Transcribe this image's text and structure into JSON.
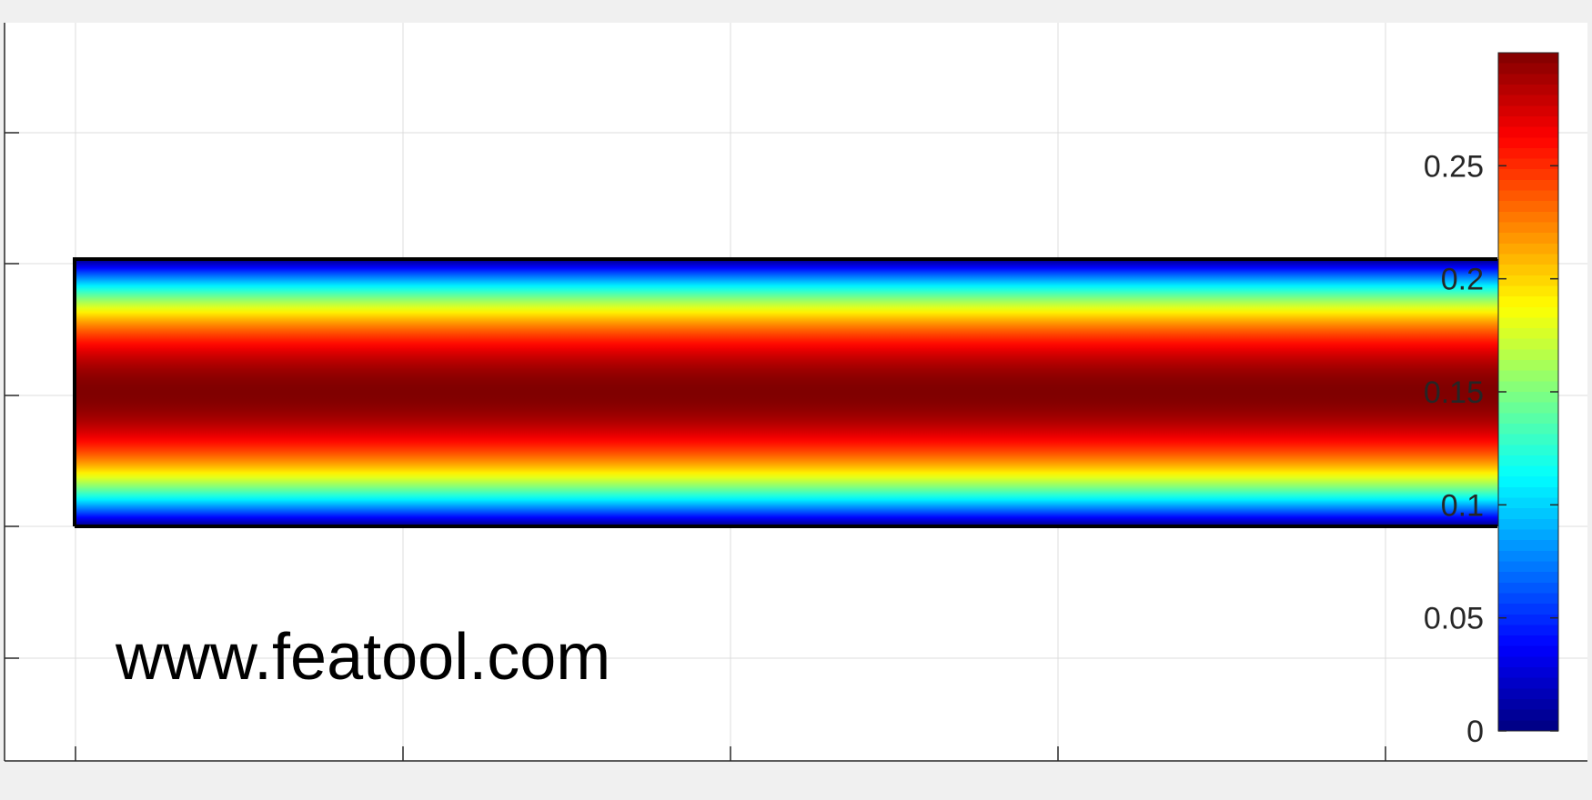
{
  "chart_data": {
    "type": "heatmap",
    "title": "",
    "xlabel": "",
    "ylabel": "",
    "grid": true,
    "colormap": "jet",
    "field_profile": "parabolic across channel height (zero at walls, maximum at centerline)",
    "domain": {
      "description": "rectangular channel region spanning the full plot width",
      "value_at_walls": 0,
      "value_at_center": 0.3
    },
    "colorbar": {
      "location": "right",
      "range": [
        0,
        0.3
      ],
      "ticks": [
        0,
        0.05,
        0.1,
        0.15,
        0.2,
        0.25
      ],
      "tick_labels": [
        "0",
        "0.05",
        "0.1",
        "0.15",
        "0.2",
        "0.25"
      ]
    },
    "watermark": "www.featool.com"
  },
  "colors": {
    "frame_background": "#f0f0f0",
    "axes_background": "#ffffff",
    "grid": "#dcdcdc",
    "axis_line": "#262626",
    "domain_border": "#000000",
    "text": "#262626"
  }
}
